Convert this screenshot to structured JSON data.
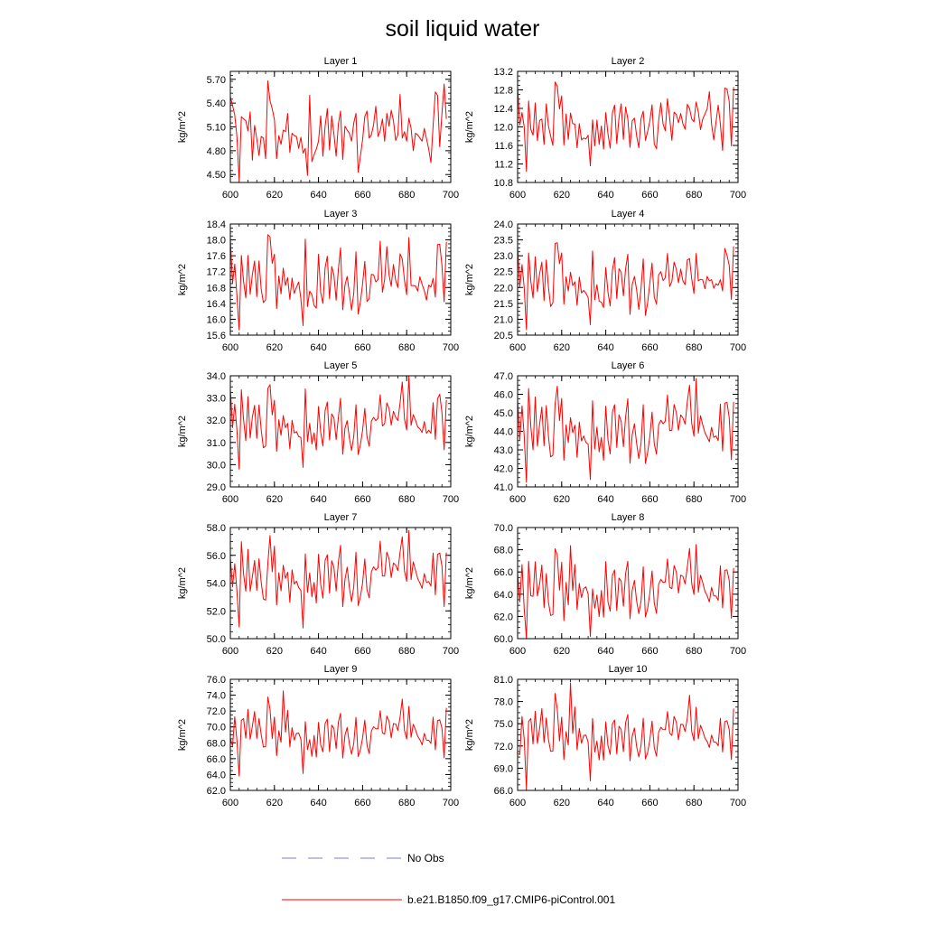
{
  "title": "soil liquid water",
  "legend": [
    {
      "label": "No Obs",
      "color": "#7b7fd6",
      "dash": "dashed"
    },
    {
      "label": "b.e21.B1850.f09_g17.CMIP6-piControl.001",
      "color": "#ff0000",
      "dash": "solid"
    }
  ],
  "series_color": "#ff0000",
  "chart_data": [
    {
      "type": "line",
      "title": "Layer 1",
      "ylabel": "kg/m^2",
      "xlim": [
        600,
        700
      ],
      "xticks": [
        "600",
        "620",
        "640",
        "660",
        "680",
        "700"
      ],
      "ylim": [
        4.4,
        5.8
      ],
      "yticks": [
        "4.50",
        "4.80",
        "5.10",
        "5.40",
        "5.70"
      ],
      "x_start": 600,
      "x_step": 1,
      "values": [
        5.48,
        5.37,
        5.25,
        4.97,
        4.42,
        5.23,
        5.2,
        5.18,
        5.05,
        5.29,
        4.68,
        5.12,
        4.95,
        4.74,
        4.98,
        4.96,
        4.7,
        5.68,
        5.43,
        5.33,
        5.19,
        4.7,
        4.99,
        4.88,
        5.06,
        5.04,
        5.27,
        4.78,
        5.02,
        4.99,
        4.98,
        4.83,
        4.97,
        4.77,
        4.83,
        4.49,
        5.5,
        4.66,
        4.75,
        4.82,
        4.92,
        5.24,
        4.73,
        5.11,
        5.33,
        4.81,
        5.24,
        5.01,
        4.73,
        5.13,
        5.3,
        4.69,
        5.11,
        5.06,
        5.02,
        4.92,
        5.15,
        5.27,
        4.53,
        4.73,
        4.94,
        5.23,
        5.3,
        4.96,
        5.0,
        5.13,
        5.36,
        4.98,
        5.05,
        5.2,
        4.92,
        5.27,
        5.11,
        5.31,
        5.18,
        4.93,
        5.0,
        5.51,
        4.96,
        5.04,
        4.92,
        5.21,
        5.08,
        4.8,
        5.02,
        5.0,
        4.96,
        4.92,
        5.08,
        4.95,
        4.82,
        4.65,
        5.12,
        5.54,
        5.5,
        4.85,
        5.27,
        5.64,
        5.2
      ]
    },
    {
      "type": "line",
      "title": "Layer 2",
      "ylabel": "kg/m^2",
      "xlim": [
        600,
        700
      ],
      "xticks": [
        "600",
        "620",
        "640",
        "660",
        "680",
        "700"
      ],
      "ylim": [
        10.8,
        13.2
      ],
      "yticks": [
        "10.8",
        "11.2",
        "11.6",
        "12.0",
        "12.4",
        "12.8",
        "13.2"
      ],
      "x_start": 600,
      "x_step": 1,
      "values": [
        12.86,
        12.04,
        12.31,
        12.0,
        11.04,
        12.56,
        11.95,
        11.82,
        12.52,
        11.7,
        12.14,
        12.17,
        11.62,
        12.5,
        12.02,
        11.8,
        11.6,
        12.97,
        12.88,
        12.39,
        12.67,
        11.61,
        12.28,
        11.73,
        12.3,
        12.07,
        12.06,
        11.55,
        12.07,
        11.72,
        11.76,
        11.74,
        11.82,
        11.16,
        12.15,
        11.59,
        12.15,
        11.62,
        12.02,
        11.52,
        12.31,
        11.85,
        11.54,
        12.3,
        12.47,
        11.64,
        12.2,
        12.5,
        11.73,
        12.43,
        12.18,
        11.56,
        12.13,
        12.19,
        11.81,
        11.55,
        12.18,
        12.34,
        11.71,
        11.9,
        12.13,
        12.48,
        11.63,
        11.53,
        12.14,
        12.52,
        12.06,
        11.92,
        12.61,
        12.19,
        11.71,
        12.32,
        12.27,
        12.09,
        12.29,
        12.07,
        11.95,
        12.49,
        12.4,
        12.17,
        12.11,
        12.54,
        12.32,
        11.94,
        12.17,
        12.28,
        12.39,
        12.76,
        12.06,
        11.72,
        12.1,
        12.47,
        12.06,
        11.49,
        12.84,
        12.82,
        12.55,
        11.59,
        12.86
      ]
    },
    {
      "type": "line",
      "title": "Layer 3",
      "ylabel": "kg/m^2",
      "xlim": [
        600,
        700
      ],
      "xticks": [
        "600",
        "620",
        "640",
        "660",
        "680",
        "700"
      ],
      "ylim": [
        15.6,
        18.4
      ],
      "yticks": [
        "15.6",
        "16.0",
        "16.4",
        "16.8",
        "17.2",
        "17.6",
        "18.0",
        "18.4"
      ],
      "x_start": 600,
      "x_step": 1,
      "values": [
        18.02,
        16.91,
        17.39,
        16.58,
        15.73,
        17.61,
        16.95,
        16.54,
        17.61,
        16.63,
        17.13,
        17.47,
        16.57,
        17.47,
        16.76,
        16.42,
        16.49,
        18.13,
        18.08,
        17.41,
        17.64,
        16.27,
        17.09,
        16.64,
        17.29,
        16.85,
        17.05,
        16.5,
        17.04,
        16.65,
        16.81,
        16.94,
        16.52,
        15.84,
        18.02,
        16.32,
        16.71,
        16.62,
        16.35,
        16.28,
        17.64,
        16.67,
        16.4,
        17.3,
        17.59,
        16.52,
        17.33,
        17.11,
        16.48,
        17.25,
        17.8,
        16.24,
        16.86,
        17.08,
        16.66,
        16.23,
        16.66,
        17.7,
        16.13,
        16.43,
        16.89,
        17.46,
        16.45,
        16.52,
        17.13,
        17.12,
        16.94,
        17.0,
        17.97,
        16.68,
        17.0,
        17.83,
        17.12,
        16.83,
        17.38,
        16.98,
        16.8,
        17.65,
        17.52,
        16.98,
        16.62,
        18.06,
        16.85,
        16.85,
        16.84,
        16.71,
        17.07,
        16.88,
        16.72,
        16.48,
        16.86,
        16.81,
        17.03,
        16.56,
        17.88,
        17.89,
        17.36,
        16.44,
        17.95
      ]
    },
    {
      "type": "line",
      "title": "Layer 4",
      "ylabel": "kg/m^2",
      "xlim": [
        600,
        700
      ],
      "xticks": [
        "600",
        "620",
        "640",
        "660",
        "680",
        "700"
      ],
      "ylim": [
        20.5,
        24.0
      ],
      "yticks": [
        "20.5",
        "21.0",
        "21.5",
        "22.0",
        "22.5",
        "23.0",
        "23.5",
        "24.0"
      ],
      "x_start": 600,
      "x_step": 1,
      "values": [
        23.32,
        22.01,
        22.72,
        21.99,
        20.67,
        23.09,
        22.2,
        21.67,
        22.97,
        21.87,
        22.44,
        22.8,
        21.59,
        22.87,
        22.01,
        21.4,
        21.52,
        23.39,
        23.41,
        22.75,
        23.09,
        21.48,
        22.34,
        21.89,
        22.48,
        22.06,
        22.18,
        21.44,
        22.33,
        21.83,
        21.91,
        21.82,
        21.69,
        20.83,
        23.15,
        21.61,
        22.09,
        21.57,
        21.54,
        21.37,
        22.63,
        21.85,
        21.42,
        22.54,
        22.94,
        21.65,
        22.59,
        22.48,
        21.74,
        22.59,
        23.05,
        21.15,
        22.09,
        22.35,
        21.93,
        21.31,
        21.98,
        22.9,
        21.12,
        21.52,
        22.15,
        22.77,
        21.7,
        21.48,
        22.4,
        22.5,
        22.22,
        22.31,
        23.07,
        22.03,
        22.19,
        22.8,
        22.58,
        22.15,
        22.58,
        22.21,
        22.09,
        22.87,
        22.91,
        22.27,
        21.81,
        23.07,
        22.21,
        22.26,
        22.24,
        21.96,
        22.35,
        22.21,
        22.25,
        21.98,
        22.12,
        22.07,
        22.25,
        21.89,
        23.23,
        23.02,
        22.7,
        21.62,
        23.3
      ]
    },
    {
      "type": "line",
      "title": "Layer 5",
      "ylabel": "kg/m^2",
      "xlim": [
        600,
        700
      ],
      "xticks": [
        "600",
        "620",
        "640",
        "660",
        "680",
        "700"
      ],
      "ylim": [
        29.0,
        34.0
      ],
      "yticks": [
        "29.0",
        "30.0",
        "31.0",
        "32.0",
        "33.0",
        "34.0"
      ],
      "x_start": 600,
      "x_step": 1,
      "values": [
        33.41,
        31.67,
        32.72,
        31.54,
        29.8,
        33.37,
        32.02,
        31.08,
        33.06,
        31.2,
        32.15,
        32.67,
        31.18,
        32.69,
        31.57,
        30.76,
        30.84,
        33.43,
        33.6,
        32.24,
        32.9,
        30.6,
        32.02,
        31.32,
        32.21,
        31.66,
        31.86,
        30.71,
        32.0,
        31.43,
        31.49,
        31.26,
        31.23,
        29.88,
        33.41,
        31.04,
        31.86,
        30.93,
        31.43,
        30.66,
        32.62,
        31.45,
        30.84,
        32.44,
        32.82,
        31.11,
        32.29,
        32.1,
        31.13,
        32.11,
        32.99,
        30.47,
        31.63,
        31.98,
        31.2,
        30.64,
        31.28,
        32.7,
        30.46,
        30.89,
        31.55,
        32.53,
        31.26,
        30.83,
        31.96,
        32.13,
        31.98,
        32.09,
        33.15,
        31.74,
        31.85,
        32.78,
        32.54,
        31.78,
        32.4,
        32.13,
        31.99,
        32.78,
        33.72,
        32.06,
        31.56,
        33.98,
        31.77,
        32.25,
        32.0,
        31.7,
        31.61,
        31.45,
        31.94,
        31.41,
        31.55,
        31.41,
        32.79,
        31.14,
        32.97,
        33.17,
        32.34,
        30.67,
        32.91
      ]
    },
    {
      "type": "line",
      "title": "Layer 6",
      "ylabel": "kg/m^2",
      "xlim": [
        600,
        700
      ],
      "xticks": [
        "600",
        "620",
        "640",
        "660",
        "680",
        "700"
      ],
      "ylim": [
        41.0,
        47.0
      ],
      "yticks": [
        "41.0",
        "42.0",
        "43.0",
        "44.0",
        "45.0",
        "46.0",
        "47.0"
      ],
      "x_start": 600,
      "x_step": 1,
      "values": [
        45.71,
        43.54,
        45.38,
        43.76,
        41.25,
        46.31,
        44.26,
        43.0,
        45.86,
        43.2,
        44.39,
        45.31,
        43.22,
        45.39,
        43.73,
        42.62,
        42.71,
        45.47,
        46.44,
        44.58,
        45.78,
        42.44,
        44.34,
        43.39,
        44.74,
        43.93,
        44.33,
        42.59,
        44.5,
        43.48,
        43.75,
        43.4,
        43.31,
        41.4,
        45.65,
        43.05,
        44.23,
        42.89,
        43.67,
        42.44,
        45.36,
        43.54,
        42.78,
        45.03,
        45.44,
        43.13,
        44.89,
        44.54,
        43.17,
        44.78,
        45.76,
        42.28,
        43.81,
        44.41,
        43.35,
        42.53,
        43.35,
        45.44,
        42.27,
        42.86,
        43.72,
        45.04,
        43.33,
        42.77,
        44.36,
        44.6,
        44.41,
        44.55,
        45.97,
        44.04,
        44.06,
        45.45,
        45.02,
        44.06,
        44.89,
        44.72,
        44.39,
        45.61,
        46.49,
        44.43,
        43.74,
        46.85,
        43.9,
        44.84,
        44.35,
        43.92,
        43.69,
        43.44,
        44.22,
        43.67,
        43.75,
        43.5,
        45.47,
        42.94,
        45.52,
        45.57,
        44.74,
        42.47,
        45.59
      ]
    },
    {
      "type": "line",
      "title": "Layer 7",
      "ylabel": "kg/m^2",
      "xlim": [
        600,
        700
      ],
      "xticks": [
        "600",
        "620",
        "640",
        "660",
        "680",
        "700"
      ],
      "ylim": [
        50.0,
        58.0
      ],
      "yticks": [
        "50.0",
        "52.0",
        "54.0",
        "56.0",
        "58.0"
      ],
      "x_start": 600,
      "x_step": 1,
      "values": [
        55.79,
        53.73,
        55.4,
        53.4,
        50.84,
        56.98,
        54.65,
        53.42,
        56.43,
        53.42,
        54.46,
        55.63,
        53.48,
        55.75,
        54.06,
        52.86,
        52.77,
        55.37,
        57.43,
        54.81,
        56.66,
        52.43,
        54.74,
        53.44,
        55.28,
        54.34,
        54.78,
        52.62,
        54.96,
        53.93,
        54.14,
        53.68,
        53.47,
        50.77,
        56.1,
        53.33,
        54.73,
        53.01,
        54.05,
        52.57,
        56.08,
        53.9,
        52.92,
        55.64,
        56.04,
        53.28,
        55.62,
        55.12,
        53.43,
        55.5,
        56.72,
        52.3,
        54.25,
        55.15,
        53.69,
        52.66,
        53.76,
        56.23,
        52.39,
        53.01,
        54.01,
        55.74,
        53.51,
        52.94,
        54.82,
        55.18,
        54.93,
        55.12,
        57.02,
        54.51,
        54.51,
        56.23,
        55.76,
        54.4,
        55.45,
        55.29,
        54.9,
        56.24,
        57.33,
        54.87,
        54.13,
        57.78,
        54.25,
        55.53,
        54.93,
        54.33,
        54.01,
        53.62,
        54.68,
        54.05,
        54.11,
        53.79,
        56.16,
        53.16,
        56.06,
        56.17,
        55.22,
        52.31,
        56.2
      ]
    },
    {
      "type": "line",
      "title": "Layer 8",
      "ylabel": "kg/m^2",
      "xlim": [
        600,
        700
      ],
      "xticks": [
        "600",
        "620",
        "640",
        "660",
        "680",
        "700"
      ],
      "ylim": [
        60.0,
        70.0
      ],
      "yticks": [
        "60.0",
        "62.0",
        "64.0",
        "66.0",
        "68.0",
        "70.0"
      ],
      "x_start": 600,
      "x_step": 1,
      "values": [
        65.9,
        63.31,
        66.67,
        62.67,
        60.07,
        66.96,
        63.85,
        63.81,
        66.92,
        63.84,
        64.91,
        66.63,
        62.79,
        65.85,
        63.26,
        62.08,
        62.17,
        68.09,
        67.56,
        64.36,
        66.88,
        61.62,
        65.06,
        63.04,
        68.37,
        64.32,
        66.67,
        62.62,
        64.97,
        63.7,
        64.51,
        64.66,
        64.01,
        60.19,
        64.48,
        62.73,
        63.93,
        61.99,
        64.34,
        61.93,
        66.94,
        63.32,
        62.47,
        65.69,
        66.18,
        62.52,
        65.46,
        65.18,
        62.92,
        65.86,
        66.96,
        61.79,
        64.35,
        65.24,
        63.41,
        62.25,
        63.35,
        66.47,
        61.96,
        62.7,
        64.12,
        66.1,
        63.22,
        62.28,
        64.9,
        65.34,
        65.05,
        65.1,
        67.18,
        64.63,
        64.49,
        66.58,
        66.0,
        64.1,
        65.72,
        65.6,
        64.93,
        66.45,
        68.11,
        64.96,
        63.97,
        68.47,
        64.18,
        65.71,
        65.03,
        64.25,
        63.87,
        63.31,
        64.61,
        63.85,
        63.84,
        63.45,
        66.54,
        62.77,
        66.15,
        66.19,
        65.25,
        61.84,
        66.36
      ]
    },
    {
      "type": "line",
      "title": "Layer 9",
      "ylabel": "kg/m^2",
      "xlim": [
        600,
        700
      ],
      "xticks": [
        "600",
        "620",
        "640",
        "660",
        "680",
        "700"
      ],
      "ylim": [
        62.0,
        76.0
      ],
      "yticks": [
        "62.0",
        "64.0",
        "66.0",
        "68.0",
        "70.0",
        "72.0",
        "74.0",
        "76.0"
      ],
      "x_start": 600,
      "x_step": 1,
      "values": [
        68.57,
        67.6,
        71.28,
        68.23,
        63.81,
        70.83,
        71.05,
        68.58,
        72.21,
        68.44,
        70.1,
        71.95,
        68.55,
        71.06,
        69.02,
        67.46,
        67.53,
        73.77,
        72.21,
        68.52,
        71.25,
        66.38,
        69.51,
        68.06,
        74.53,
        69.35,
        72.09,
        67.49,
        69.89,
        68.34,
        69.18,
        69.23,
        68.47,
        64.13,
        70.67,
        67.14,
        68.4,
        66.28,
        68.93,
        66.2,
        70.58,
        67.75,
        66.86,
        70.43,
        70.98,
        66.88,
        70.23,
        69.79,
        67.26,
        70.57,
        71.72,
        66.09,
        68.94,
        69.94,
        67.85,
        66.56,
        67.95,
        71.21,
        66.27,
        67.09,
        68.62,
        70.86,
        67.7,
        66.66,
        69.5,
        70.03,
        69.76,
        69.78,
        72.04,
        69.25,
        69.09,
        71.37,
        70.72,
        68.62,
        70.43,
        70.36,
        69.57,
        71.23,
        73.5,
        69.56,
        68.48,
        72.59,
        68.69,
        70.34,
        69.63,
        68.81,
        68.39,
        67.74,
        69.18,
        68.33,
        68.32,
        67.92,
        71.22,
        67.11,
        70.79,
        70.89,
        69.84,
        66.1,
        72.4
      ]
    },
    {
      "type": "line",
      "title": "Layer 10",
      "ylabel": "kg/m^2",
      "xlim": [
        600,
        700
      ],
      "xticks": [
        "600",
        "620",
        "640",
        "660",
        "680",
        "700"
      ],
      "ylim": [
        66.0,
        81.0
      ],
      "yticks": [
        "66.0",
        "69.0",
        "72.0",
        "75.0",
        "78.0",
        "81.0"
      ],
      "x_start": 600,
      "x_step": 1,
      "values": [
        70.96,
        70.84,
        75.99,
        72.89,
        66.26,
        75.32,
        75.7,
        72.27,
        76.69,
        72.33,
        74.36,
        77.05,
        72.46,
        75.79,
        72.87,
        71.27,
        71.3,
        79.09,
        76.99,
        72.67,
        75.9,
        70.16,
        73.93,
        72.14,
        80.52,
        73.69,
        77.26,
        71.48,
        74.37,
        72.36,
        73.43,
        73.48,
        72.5,
        67.29,
        75.71,
        71.18,
        72.64,
        70.12,
        73.35,
        70.09,
        75.25,
        72.05,
        70.87,
        74.96,
        75.5,
        70.93,
        74.67,
        74.22,
        71.23,
        75.13,
        76.24,
        70.0,
        73.31,
        74.43,
        71.91,
        70.52,
        72.06,
        75.74,
        70.26,
        71.1,
        72.84,
        75.35,
        71.79,
        70.62,
        73.87,
        74.52,
        74.21,
        74.2,
        76.65,
        73.72,
        73.42,
        75.99,
        75.22,
        72.85,
        74.92,
        74.9,
        73.95,
        75.79,
        78.85,
        73.99,
        72.71,
        77.24,
        72.96,
        74.79,
        74.0,
        73.05,
        72.61,
        71.8,
        73.47,
        72.53,
        72.51,
        72.03,
        75.72,
        71.18,
        75.29,
        75.41,
        74.23,
        70.16,
        77.05
      ]
    }
  ]
}
